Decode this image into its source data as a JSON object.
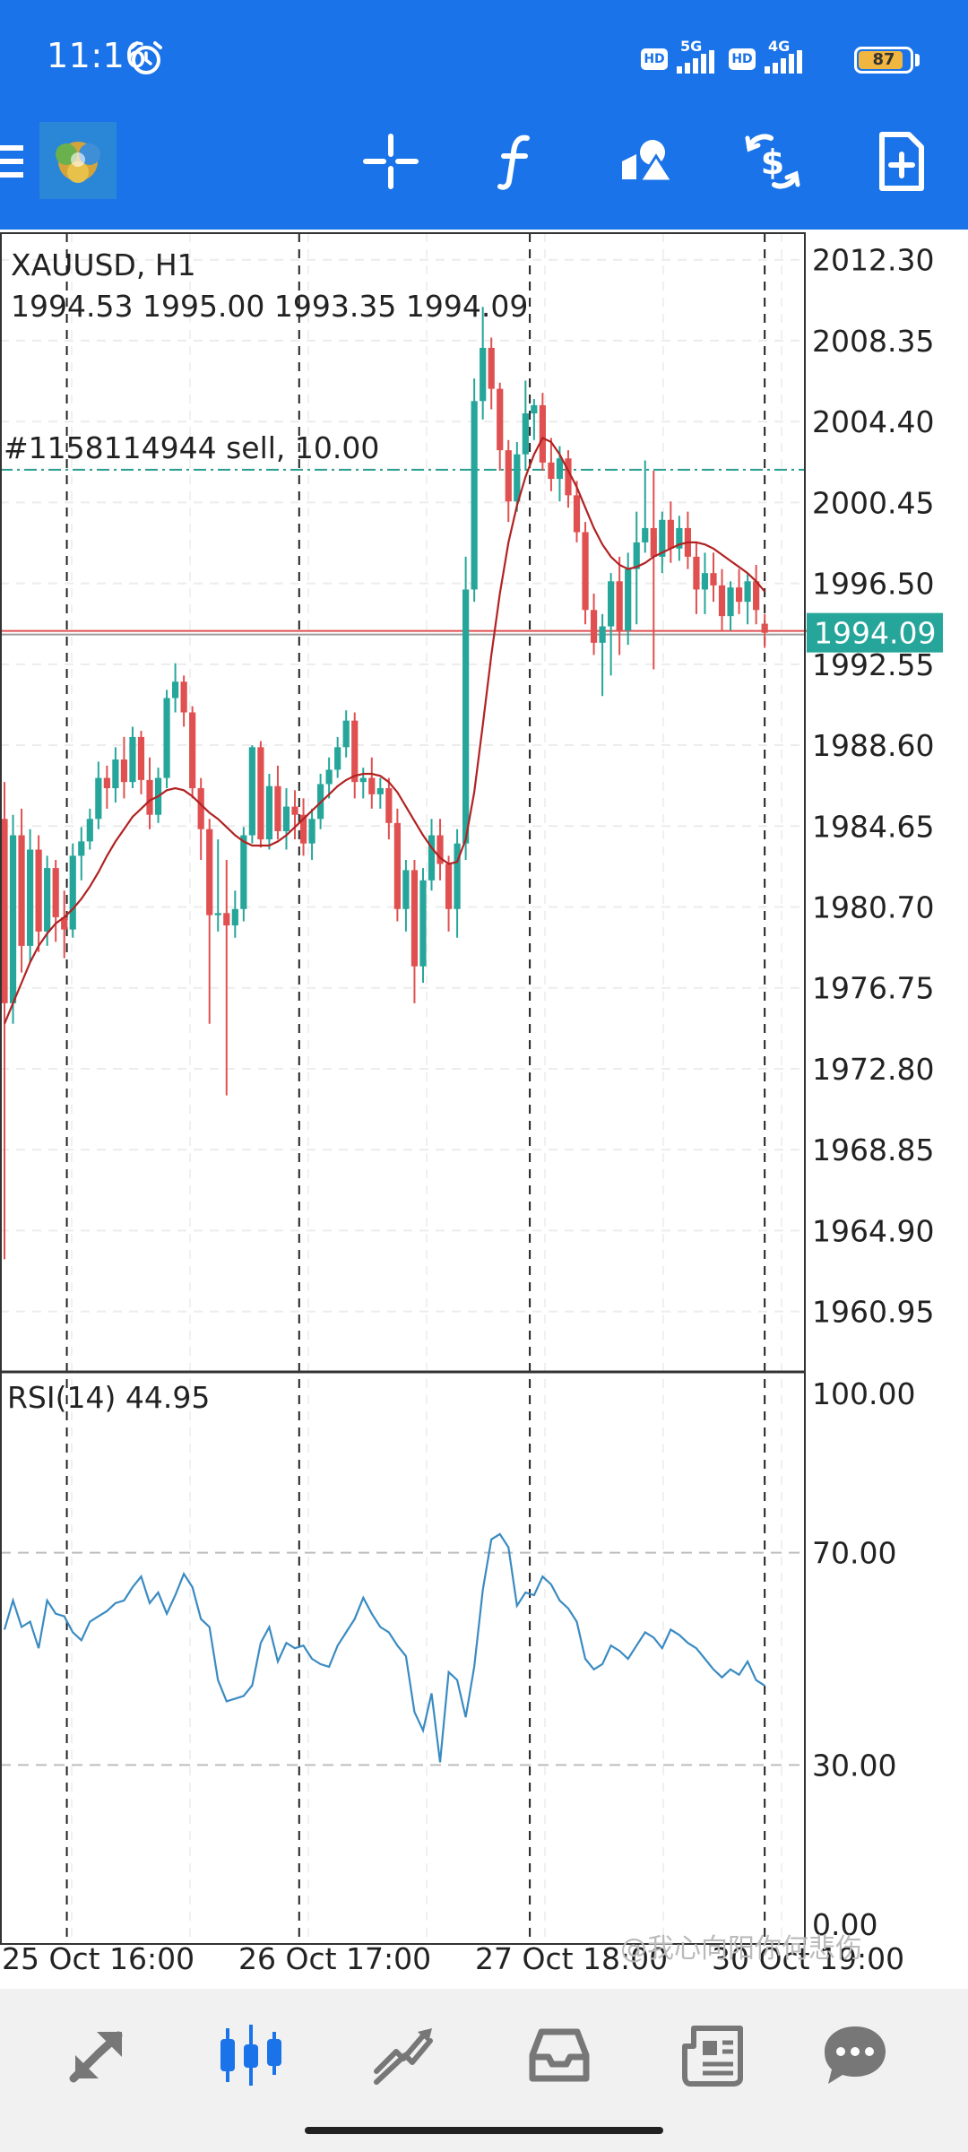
{
  "status_bar": {
    "time": "11:16",
    "network_1": "5G",
    "network_2": "4G",
    "hd_1": "HD",
    "hd_2": "HD",
    "battery": "87",
    "battery_level_percent": 87
  },
  "toolbar": {
    "icons": [
      "menu-icon",
      "app-logo-icon",
      "crosshair-icon",
      "indicators-icon",
      "objects-icon",
      "symbol-dollar-icon",
      "new-order-icon"
    ]
  },
  "chart_header": {
    "symbol_timeframe": "XAUUSD, H1",
    "ohlc": "1994.53 1995.00 1993.35 1994.09"
  },
  "order_line": {
    "label": "#1158114944 sell, 10.00",
    "price": 2002.05,
    "color": "#2a9d8f"
  },
  "current_price": {
    "label": "1994.09",
    "value": 1994.09,
    "color": "#26a69a"
  },
  "colors": {
    "bull": "#26a69a",
    "bear": "#e05050",
    "ma": "#b22222",
    "rsi": "#3a8bc2",
    "brand": "#1a73e8"
  },
  "chart_data": [
    {
      "type": "candlestick",
      "price_axis_ticks": [
        "2012.30",
        "2008.35",
        "2004.40",
        "2000.45",
        "1996.50",
        "1992.55",
        "1988.60",
        "1984.65",
        "1980.70",
        "1976.75",
        "1972.80",
        "1968.85",
        "1964.90",
        "1960.95"
      ],
      "ylim": [
        1958.0,
        2013.6
      ],
      "time_axis_labels": [
        "25 Oct 16:00",
        "26 Oct 17:00",
        "27 Oct 18:00",
        "30 Oct 19:00"
      ],
      "separator_bars": [
        7.3,
        34.5,
        61.5,
        89.0
      ],
      "grid": true,
      "candles": [
        [
          1985.0,
          1986.8,
          1963.5,
          1976.0
        ],
        [
          1976.0,
          1985.2,
          1975.0,
          1984.2
        ],
        [
          1984.2,
          1985.5,
          1977.5,
          1978.8
        ],
        [
          1978.8,
          1984.5,
          1978.0,
          1983.5
        ],
        [
          1983.5,
          1984.2,
          1978.5,
          1979.5
        ],
        [
          1979.5,
          1983.2,
          1978.8,
          1982.6
        ],
        [
          1982.6,
          1983.0,
          1979.0,
          1980.2
        ],
        [
          1980.2,
          1981.5,
          1978.2,
          1979.6
        ],
        [
          1979.6,
          1983.8,
          1979.2,
          1983.2
        ],
        [
          1983.2,
          1984.6,
          1982.0,
          1983.9
        ],
        [
          1983.9,
          1985.5,
          1983.5,
          1985.0
        ],
        [
          1985.0,
          1987.8,
          1984.5,
          1987.0
        ],
        [
          1987.0,
          1987.6,
          1985.5,
          1986.5
        ],
        [
          1986.5,
          1988.5,
          1985.8,
          1987.9
        ],
        [
          1987.9,
          1989.0,
          1986.0,
          1986.8
        ],
        [
          1986.8,
          1989.5,
          1986.5,
          1989.0
        ],
        [
          1989.0,
          1989.3,
          1986.2,
          1986.9
        ],
        [
          1986.9,
          1988.0,
          1984.5,
          1985.2
        ],
        [
          1985.2,
          1987.5,
          1984.8,
          1987.0
        ],
        [
          1987.0,
          1991.3,
          1986.5,
          1990.9
        ],
        [
          1990.9,
          1992.6,
          1990.2,
          1991.7
        ],
        [
          1991.7,
          1992.0,
          1989.5,
          1990.2
        ],
        [
          1990.2,
          1990.5,
          1986.0,
          1986.5
        ],
        [
          1986.5,
          1987.0,
          1983.0,
          1984.5
        ],
        [
          1984.5,
          1985.0,
          1975.0,
          1980.3
        ],
        [
          1980.3,
          1984.0,
          1979.5,
          1980.4
        ],
        [
          1980.4,
          1983.0,
          1971.5,
          1979.8
        ],
        [
          1979.8,
          1981.5,
          1979.2,
          1980.6
        ],
        [
          1980.6,
          1984.6,
          1980.0,
          1984.2
        ],
        [
          1984.2,
          1988.6,
          1983.8,
          1988.5
        ],
        [
          1988.5,
          1988.8,
          1983.6,
          1984.0
        ],
        [
          1984.0,
          1987.2,
          1983.5,
          1986.6
        ],
        [
          1986.6,
          1987.6,
          1984.0,
          1984.4
        ],
        [
          1984.4,
          1986.5,
          1983.5,
          1985.6
        ],
        [
          1985.6,
          1986.4,
          1984.0,
          1985.2
        ],
        [
          1985.2,
          1986.0,
          1983.2,
          1983.8
        ],
        [
          1983.8,
          1985.5,
          1983.0,
          1985.0
        ],
        [
          1985.0,
          1987.2,
          1984.5,
          1986.7
        ],
        [
          1986.7,
          1988.0,
          1986.0,
          1987.4
        ],
        [
          1987.4,
          1989.0,
          1987.0,
          1988.5
        ],
        [
          1988.5,
          1990.3,
          1988.0,
          1989.8
        ],
        [
          1989.8,
          1990.2,
          1986.0,
          1986.8
        ],
        [
          1986.8,
          1987.5,
          1986.0,
          1987.0
        ],
        [
          1987.0,
          1988.0,
          1985.5,
          1986.2
        ],
        [
          1986.2,
          1987.0,
          1985.5,
          1986.5
        ],
        [
          1986.5,
          1987.0,
          1984.0,
          1984.8
        ],
        [
          1984.8,
          1985.5,
          1980.0,
          1980.6
        ],
        [
          1980.6,
          1983.0,
          1979.5,
          1982.5
        ],
        [
          1982.5,
          1983.0,
          1976.0,
          1977.8
        ],
        [
          1977.8,
          1982.6,
          1977.0,
          1982.0
        ],
        [
          1982.0,
          1985.0,
          1981.5,
          1984.2
        ],
        [
          1984.2,
          1985.0,
          1982.0,
          1982.8
        ],
        [
          1982.8,
          1983.2,
          1979.5,
          1980.6
        ],
        [
          1980.6,
          1984.5,
          1979.2,
          1983.8
        ],
        [
          1983.8,
          1997.8,
          1983.0,
          1996.2
        ],
        [
          1996.2,
          2006.5,
          1995.6,
          2005.4
        ],
        [
          2005.4,
          2010.0,
          2004.5,
          2008.0
        ],
        [
          2008.0,
          2008.5,
          2005.0,
          2006.0
        ],
        [
          2006.0,
          2006.3,
          2002.0,
          2003.0
        ],
        [
          2003.0,
          2003.5,
          1999.5,
          2000.5
        ],
        [
          2000.5,
          2003.4,
          2000.0,
          2002.8
        ],
        [
          2002.8,
          2006.4,
          2002.0,
          2004.8
        ],
        [
          2004.8,
          2005.5,
          2003.5,
          2005.2
        ],
        [
          2005.2,
          2005.8,
          2002.0,
          2002.4
        ],
        [
          2002.4,
          2003.6,
          2001.0,
          2001.6
        ],
        [
          2001.6,
          2003.2,
          2000.5,
          2002.6
        ],
        [
          2002.6,
          2003.0,
          2000.2,
          2000.8
        ],
        [
          2000.8,
          2001.5,
          1998.5,
          1999.0
        ],
        [
          1999.0,
          1999.5,
          1994.5,
          1995.2
        ],
        [
          1995.2,
          1996.0,
          1993.0,
          1993.6
        ],
        [
          1993.6,
          1995.0,
          1991.0,
          1994.4
        ],
        [
          1994.4,
          1997.0,
          1992.0,
          1996.6
        ],
        [
          1996.6,
          1997.8,
          1993.0,
          1994.2
        ],
        [
          1994.2,
          1998.0,
          1993.5,
          1997.2
        ],
        [
          1997.2,
          2000.0,
          1994.5,
          1998.5
        ],
        [
          1998.5,
          2002.5,
          1998.0,
          1999.2
        ],
        [
          1999.2,
          2002.0,
          1992.3,
          1997.8
        ],
        [
          1997.8,
          2000.0,
          1997.0,
          1999.6
        ],
        [
          1999.6,
          2000.5,
          1997.5,
          1998.2
        ],
        [
          1998.2,
          1999.8,
          1997.6,
          1999.2
        ],
        [
          1999.2,
          2000.0,
          1997.2,
          1997.8
        ],
        [
          1997.8,
          1998.5,
          1995.0,
          1996.2
        ],
        [
          1996.2,
          1998.0,
          1995.0,
          1997.0
        ],
        [
          1997.0,
          1998.0,
          1995.6,
          1996.4
        ],
        [
          1996.4,
          1997.2,
          1994.2,
          1994.9
        ],
        [
          1994.9,
          1996.6,
          1994.2,
          1996.3
        ],
        [
          1996.3,
          1997.2,
          1995.0,
          1995.6
        ],
        [
          1995.6,
          1997.0,
          1994.5,
          1996.6
        ],
        [
          1996.6,
          1997.4,
          1994.5,
          1995.2
        ],
        [
          1994.53,
          1995.0,
          1993.35,
          1994.09
        ]
      ],
      "ma": [
        1975.0,
        1976.0,
        1977.0,
        1978.0,
        1978.8,
        1979.4,
        1979.9,
        1980.2,
        1980.6,
        1981.1,
        1981.7,
        1982.4,
        1983.2,
        1983.9,
        1984.5,
        1985.1,
        1985.5,
        1985.9,
        1986.1,
        1986.4,
        1986.5,
        1986.4,
        1986.1,
        1985.7,
        1985.3,
        1985.0,
        1984.6,
        1984.2,
        1983.9,
        1983.7,
        1983.7,
        1983.7,
        1983.9,
        1984.2,
        1984.6,
        1985.0,
        1985.4,
        1985.8,
        1986.2,
        1986.6,
        1986.9,
        1987.1,
        1987.2,
        1987.2,
        1987.1,
        1986.8,
        1986.3,
        1985.6,
        1984.9,
        1984.2,
        1983.6,
        1983.1,
        1982.8,
        1982.9,
        1984.0,
        1986.3,
        1989.6,
        1993.0,
        1996.0,
        1998.5,
        2000.3,
        2001.7,
        2002.8,
        2003.6,
        2003.4,
        2002.8,
        2002.0,
        2001.2,
        2000.2,
        1999.2,
        1998.4,
        1997.8,
        1997.4,
        1997.2,
        1997.3,
        1997.5,
        1997.8,
        1998.0,
        1998.2,
        1998.4,
        1998.5,
        1998.5,
        1998.4,
        1998.2,
        1997.9,
        1997.6,
        1997.3,
        1997.0,
        1996.6,
        1996.1
      ],
      "xlabel": "",
      "ylabel": ""
    },
    {
      "type": "line",
      "label": "RSI(14) 44.95",
      "axis_ticks": [
        "100.00",
        "70.00",
        "30.00",
        "0.00"
      ],
      "ylim": [
        0,
        100
      ],
      "levels": [
        70,
        30
      ],
      "series": [
        {
          "values": [
            55.5,
            61.0,
            56.0,
            57.0,
            52.0,
            61.0,
            58.5,
            58.0,
            55.0,
            53.5,
            57.0,
            58.0,
            59.0,
            60.5,
            61.0,
            63.5,
            65.5,
            60.5,
            62.5,
            58.5,
            62.0,
            66.0,
            63.5,
            57.5,
            56.0,
            46.0,
            42.0,
            42.5,
            43.0,
            45.0,
            53.0,
            56.0,
            49.5,
            53.0,
            52.0,
            52.5,
            50.0,
            49.0,
            48.5,
            52.5,
            55.0,
            57.5,
            61.5,
            58.5,
            56.0,
            55.0,
            52.5,
            50.5,
            40.0,
            36.5,
            43.5,
            30.5,
            47.5,
            46.0,
            39.0,
            48.5,
            63.0,
            72.5,
            73.5,
            71.0,
            60.0,
            62.5,
            62.0,
            65.5,
            64.0,
            61.0,
            59.5,
            57.0,
            50.0,
            48.0,
            49.0,
            52.5,
            51.5,
            50.0,
            52.5,
            55.0,
            54.0,
            52.0,
            55.5,
            54.5,
            53.0,
            52.0,
            50.0,
            48.0,
            46.5,
            48.0,
            47.0,
            49.5,
            46.0,
            44.95
          ]
        }
      ],
      "grid": true
    }
  ],
  "bottom_nav": {
    "items": [
      "quotes-icon",
      "chart-icon",
      "trade-icon",
      "history-icon",
      "news-icon",
      "chat-icon"
    ],
    "active": 1
  },
  "watermark": "@我心向阳你何悲伤"
}
